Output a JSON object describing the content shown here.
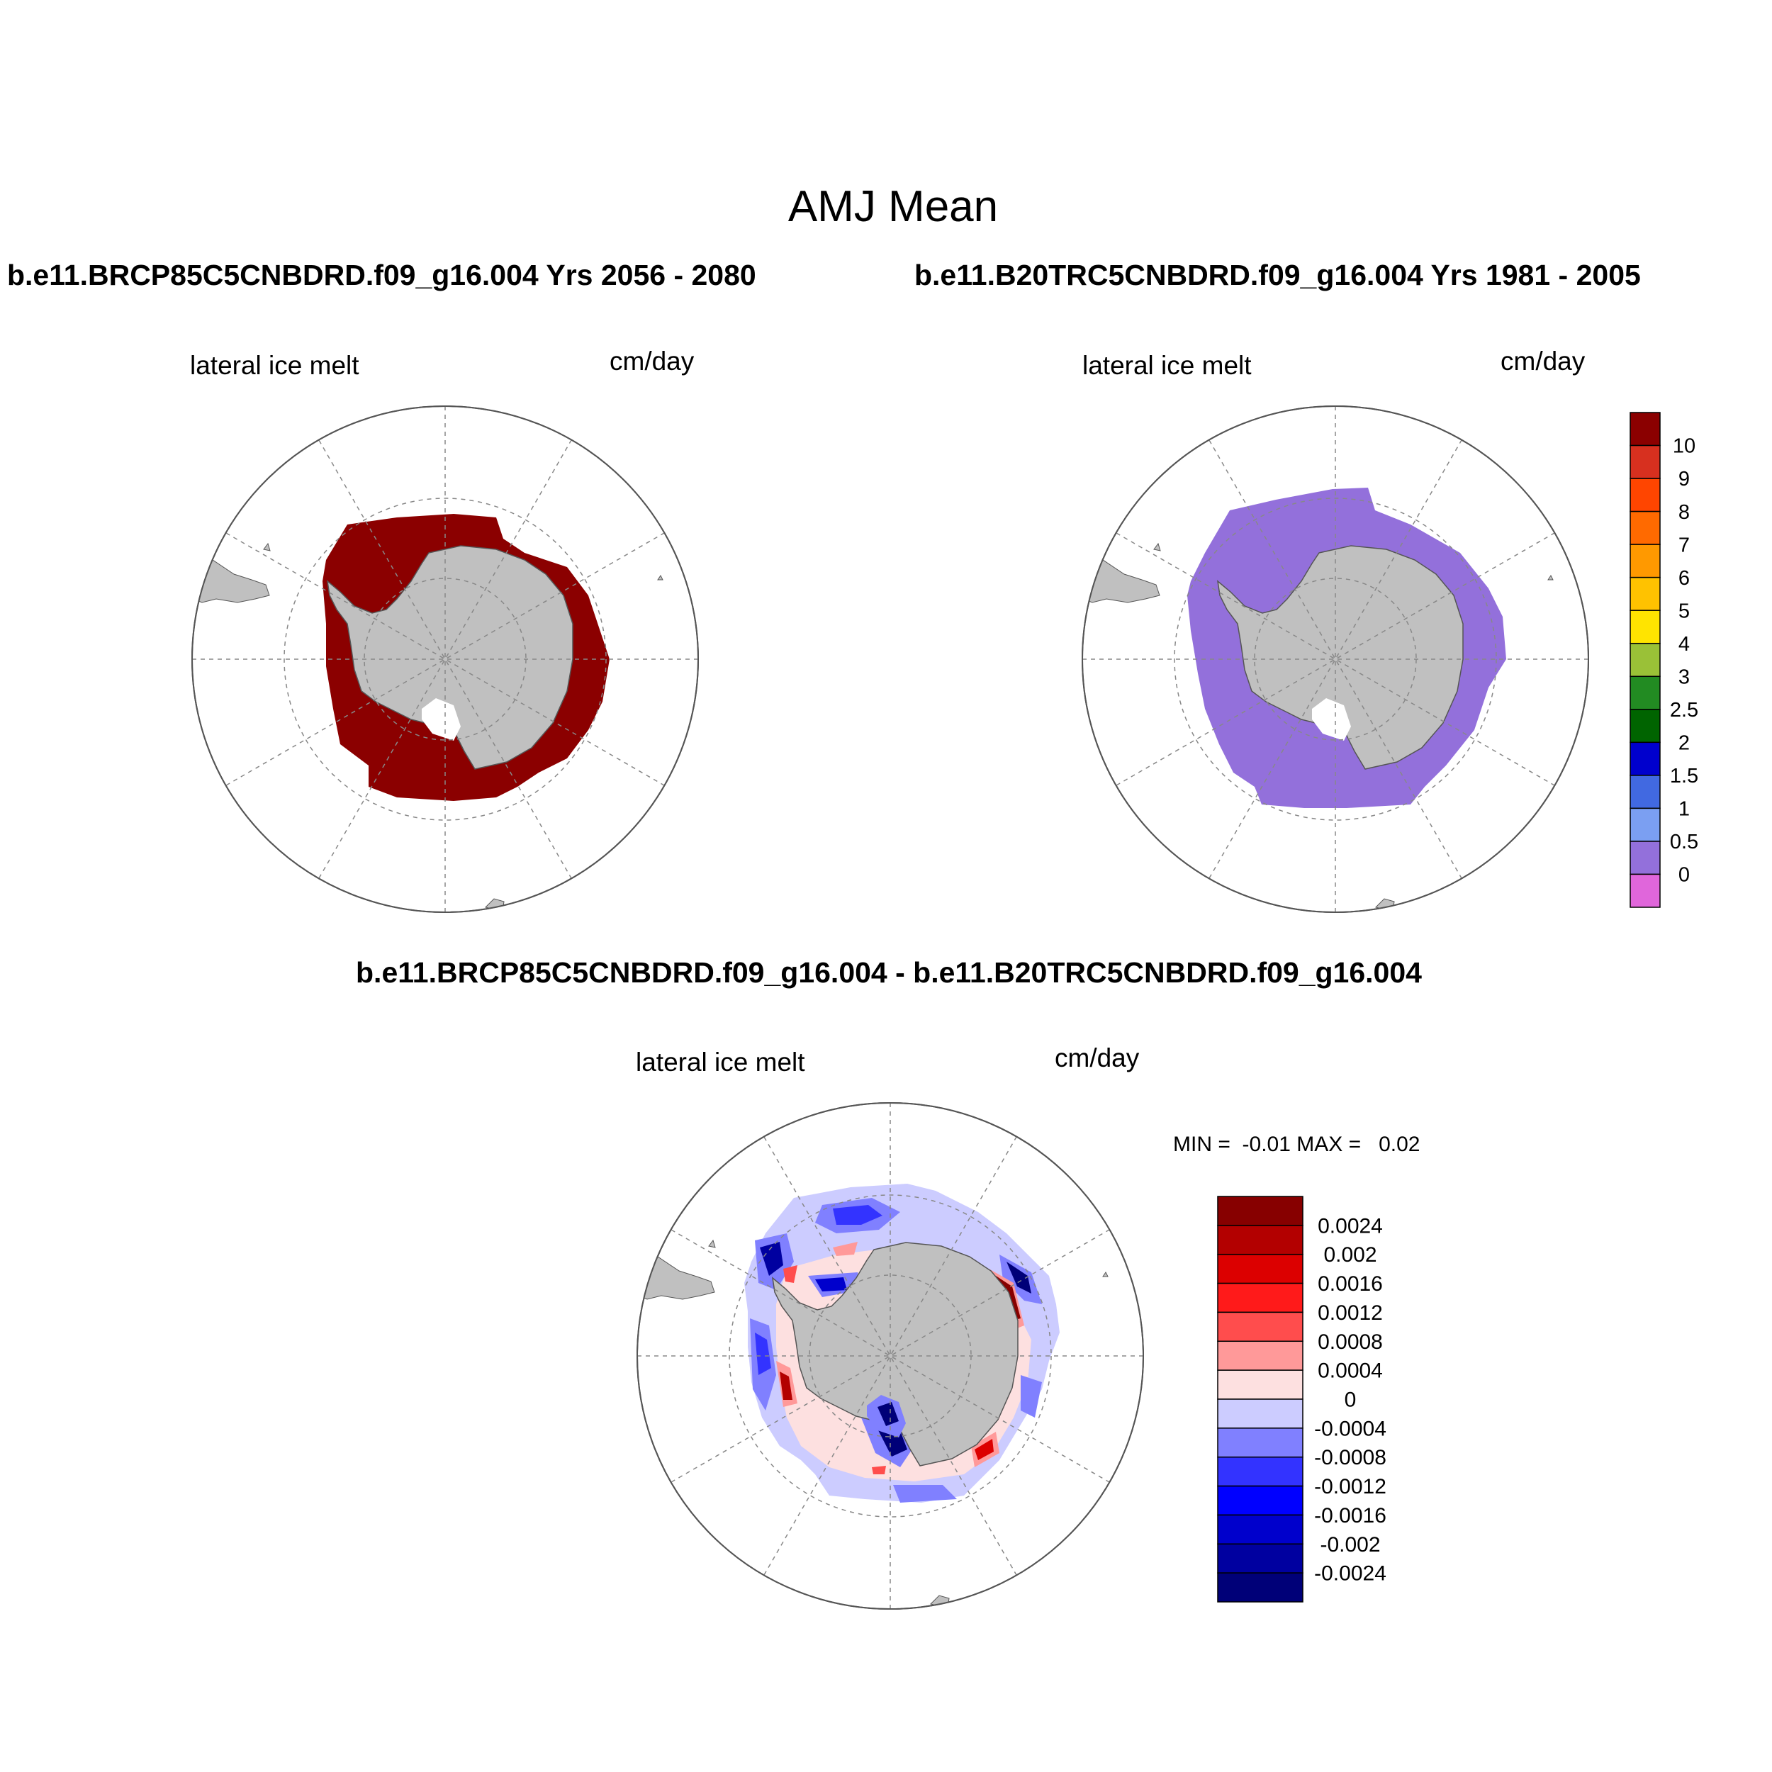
{
  "title": "AMJ Mean",
  "panels": [
    {
      "heading": "b.e11.BRCP85C5CNBDRD.f09_g16.004  Yrs 2056 - 2080",
      "variable": "lateral ice melt",
      "units": "cm/day",
      "fill_color": "#8b0000"
    },
    {
      "heading": "b.e11.B20TRC5CNBDRD.f09_g16.004  Yrs 1981 - 2005",
      "variable": "lateral ice melt",
      "units": "cm/day",
      "fill_color": "#9370db"
    },
    {
      "heading": "b.e11.BRCP85C5CNBDRD.f09_g16.004 - b.e11.B20TRC5CNBDRD.f09_g16.004",
      "variable": "lateral ice melt",
      "units": "cm/day",
      "stats": "MIN =  -0.01 MAX =   0.02"
    }
  ],
  "colorbar_top": {
    "labels": [
      "10",
      "9",
      "8",
      "7",
      "6",
      "5",
      "4",
      "3",
      "2.5",
      "2",
      "1.5",
      "1",
      "0.5",
      "0"
    ],
    "colors": [
      "#8b0000",
      "#d7301f",
      "#ff4500",
      "#ff6a00",
      "#ff9900",
      "#ffc200",
      "#ffe400",
      "#9ac137",
      "#228b22",
      "#006400",
      "#0000cd",
      "#4169e1",
      "#7b9ff2",
      "#9370db",
      "#e066db"
    ]
  },
  "colorbar_diff": {
    "labels": [
      "0.0024",
      "0.002",
      "0.0016",
      "0.0012",
      "0.0008",
      "0.0004",
      "0",
      "-0.0004",
      "-0.0008",
      "-0.0012",
      "-0.0016",
      "-0.002",
      "-0.0024"
    ],
    "colors": [
      "#870000",
      "#b30000",
      "#dc0000",
      "#ff1a1a",
      "#ff4d4d",
      "#ff9999",
      "#fde0e0",
      "#ccccff",
      "#8080ff",
      "#3333ff",
      "#0000ff",
      "#0000cc",
      "#0000a0",
      "#000078"
    ]
  },
  "land_color": "#c0c0c0"
}
